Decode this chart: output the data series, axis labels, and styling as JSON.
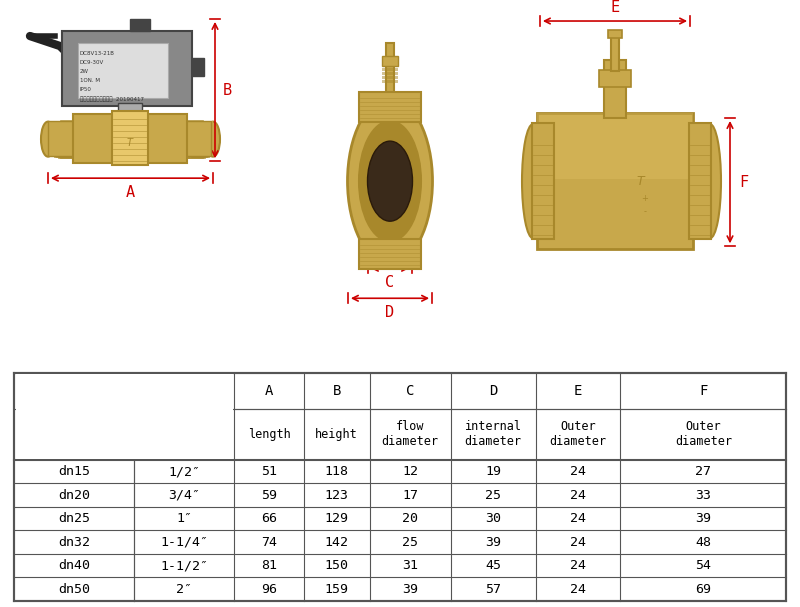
{
  "background_color": "#ffffff",
  "dimension_color": "#cc0000",
  "table_border_color": "#555555",
  "brass_color": "#c8a84b",
  "brass_dark": "#a8882b",
  "brass_light": "#e8c86b",
  "actuator_gray": "#888888",
  "actuator_dark": "#444444",
  "actuator_light": "#aaaaaa",
  "cable_color": "#222222",
  "table": {
    "rows": [
      [
        "dn15",
        "1/2″",
        "51",
        "118",
        "12",
        "19",
        "24",
        "27"
      ],
      [
        "dn20",
        "3/4″",
        "59",
        "123",
        "17",
        "25",
        "24",
        "33"
      ],
      [
        "dn25",
        "1″",
        "66",
        "129",
        "20",
        "30",
        "24",
        "39"
      ],
      [
        "dn32",
        "1-1/4″",
        "74",
        "142",
        "25",
        "39",
        "24",
        "48"
      ],
      [
        "dn40",
        "1-1/2″",
        "81",
        "150",
        "31",
        "45",
        "24",
        "54"
      ],
      [
        "dn50",
        "2″",
        "96",
        "159",
        "39",
        "57",
        "24",
        "69"
      ]
    ]
  }
}
